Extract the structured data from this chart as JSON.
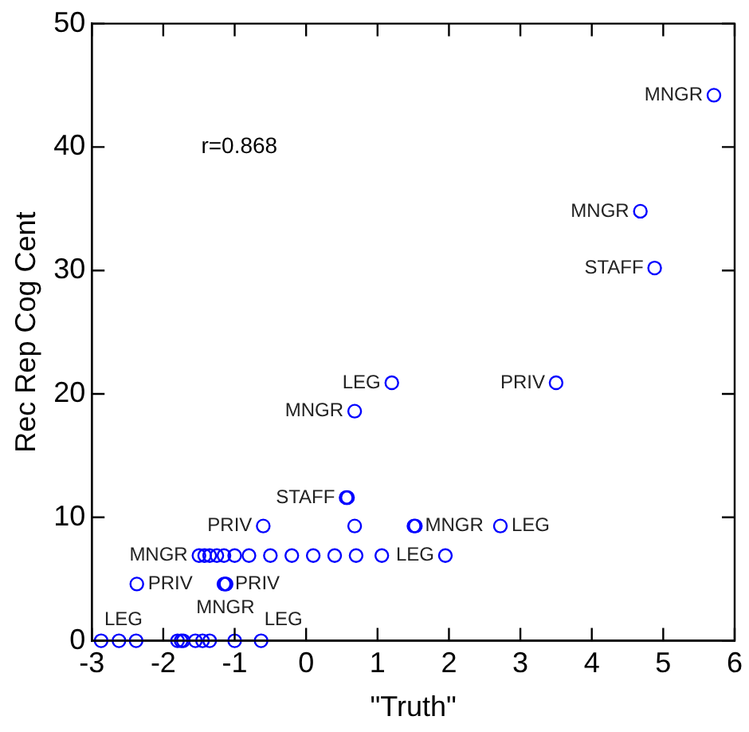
{
  "chart_data": {
    "type": "scatter",
    "xlabel": "\"Truth\"",
    "ylabel": "Rec Rep Cog Cent",
    "annotations": [
      "r=0.868"
    ],
    "xlim": [
      -3,
      6
    ],
    "xticks": [
      -3,
      -2,
      -1,
      0,
      1,
      2,
      3,
      4,
      5,
      6
    ],
    "ylim": [
      0,
      50
    ],
    "yticks": [
      0,
      10,
      20,
      30,
      40,
      50
    ],
    "marker": "circle",
    "series": [
      {
        "color": "#0000ff",
        "x": [
          5.71,
          4.68,
          4.88,
          3.5,
          1.2,
          0.68,
          0.56,
          0.58,
          -0.6,
          0.68,
          1.51,
          1.53,
          2.72,
          -1.5,
          -1.42,
          -1.35,
          -1.25,
          -1.15,
          -1.0,
          -0.8,
          -0.5,
          -0.2,
          0.1,
          0.4,
          0.7,
          1.06,
          1.95,
          -2.37,
          -1.15,
          -1.13,
          -1.12,
          -2.87,
          -2.62,
          -2.38,
          -1.8,
          -1.75,
          -1.72,
          -1.55,
          -1.45,
          -1.35,
          -1.0,
          -0.63
        ],
        "values": [
          44.2,
          34.8,
          30.2,
          20.9,
          20.9,
          18.6,
          11.6,
          11.6,
          9.3,
          9.3,
          9.3,
          9.3,
          9.3,
          6.9,
          6.9,
          6.9,
          6.9,
          6.9,
          6.9,
          6.9,
          6.9,
          6.9,
          6.9,
          6.9,
          6.9,
          6.9,
          6.9,
          4.6,
          4.6,
          4.6,
          4.6,
          0,
          0,
          0,
          0,
          0,
          0,
          0,
          0,
          0,
          0,
          0
        ],
        "value_labels": [
          "MNGR",
          "MNGR",
          "STAFF",
          "PRIV",
          "LEG",
          "MNGR",
          "STAFF",
          null,
          "PRIV",
          null,
          "MNGR",
          null,
          "LEG",
          "MNGR",
          null,
          null,
          null,
          null,
          null,
          null,
          null,
          null,
          null,
          null,
          null,
          null,
          "LEG",
          "PRIV",
          "PRIV",
          "MNGR",
          null,
          "LEG",
          null,
          null,
          null,
          null,
          null,
          null,
          null,
          null,
          null,
          "LEG"
        ]
      }
    ]
  }
}
